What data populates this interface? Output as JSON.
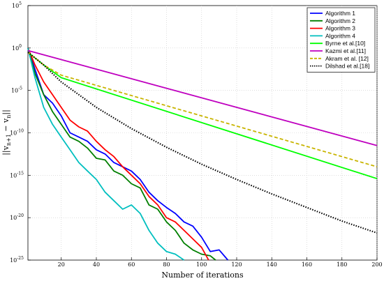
{
  "chart_data": {
    "type": "line",
    "xlabel": "Number of iterations",
    "ylabel": "||v_{n+1} - v_n||",
    "xlim": [
      1,
      200
    ],
    "ylim": [
      1e-25,
      100000.0
    ],
    "yscale": "log",
    "grid": true,
    "legend_position": "top-right",
    "x_ticks": [
      20,
      40,
      60,
      80,
      100,
      120,
      140,
      160,
      180,
      200
    ],
    "y_ticks": [
      {
        "exp": "5",
        "value": 5
      },
      {
        "exp": "0",
        "value": 0
      },
      {
        "exp": "-5",
        "value": -5
      },
      {
        "exp": "-10",
        "value": -10
      },
      {
        "exp": "-15",
        "value": -15
      },
      {
        "exp": "-20",
        "value": -20
      },
      {
        "exp": "-25",
        "value": -25
      }
    ],
    "series": [
      {
        "name": "Algorithm 1",
        "color": "#0000ff",
        "style": "solid",
        "points": [
          [
            1,
            0
          ],
          [
            5,
            -2.5
          ],
          [
            10,
            -5.5
          ],
          [
            15,
            -6.5
          ],
          [
            20,
            -8
          ],
          [
            25,
            -10
          ],
          [
            30,
            -10.5
          ],
          [
            35,
            -11
          ],
          [
            40,
            -12
          ],
          [
            45,
            -12.5
          ],
          [
            50,
            -13.5
          ],
          [
            55,
            -14
          ],
          [
            60,
            -14.5
          ],
          [
            65,
            -15.5
          ],
          [
            70,
            -17
          ],
          [
            75,
            -18
          ],
          [
            80,
            -18.8
          ],
          [
            85,
            -19.5
          ],
          [
            90,
            -20.5
          ],
          [
            95,
            -21
          ],
          [
            100,
            -22.3
          ],
          [
            105,
            -24
          ],
          [
            110,
            -23.8
          ],
          [
            115,
            -25
          ]
        ]
      },
      {
        "name": "Algorithm 2",
        "color": "#007f00",
        "style": "solid",
        "points": [
          [
            1,
            0
          ],
          [
            5,
            -3
          ],
          [
            10,
            -5.5
          ],
          [
            15,
            -7.5
          ],
          [
            20,
            -9
          ],
          [
            25,
            -10.5
          ],
          [
            30,
            -11
          ],
          [
            35,
            -11.8
          ],
          [
            40,
            -13
          ],
          [
            45,
            -13.2
          ],
          [
            50,
            -14.5
          ],
          [
            55,
            -15
          ],
          [
            60,
            -16
          ],
          [
            65,
            -16.5
          ],
          [
            70,
            -18.5
          ],
          [
            75,
            -19
          ],
          [
            80,
            -20.5
          ],
          [
            85,
            -21.5
          ],
          [
            90,
            -23
          ],
          [
            95,
            -23.8
          ],
          [
            100,
            -24.3
          ],
          [
            105,
            -24.5
          ],
          [
            108,
            -25
          ]
        ]
      },
      {
        "name": "Algorithm 3",
        "color": "#ff0000",
        "style": "solid",
        "points": [
          [
            1,
            0
          ],
          [
            5,
            -2
          ],
          [
            10,
            -4
          ],
          [
            15,
            -5.5
          ],
          [
            20,
            -7
          ],
          [
            25,
            -8.5
          ],
          [
            30,
            -9.3
          ],
          [
            35,
            -9.8
          ],
          [
            40,
            -11
          ],
          [
            45,
            -12
          ],
          [
            50,
            -12.8
          ],
          [
            55,
            -14
          ],
          [
            60,
            -15
          ],
          [
            65,
            -16
          ],
          [
            70,
            -17.5
          ],
          [
            75,
            -18.5
          ],
          [
            80,
            -20
          ],
          [
            85,
            -20.5
          ],
          [
            90,
            -21.5
          ],
          [
            95,
            -22.5
          ],
          [
            100,
            -23.5
          ],
          [
            104,
            -25
          ]
        ]
      },
      {
        "name": "Algorithm 4",
        "color": "#00bfbf",
        "style": "solid",
        "points": [
          [
            1,
            0
          ],
          [
            5,
            -3.5
          ],
          [
            10,
            -7
          ],
          [
            15,
            -9
          ],
          [
            20,
            -10.5
          ],
          [
            25,
            -12
          ],
          [
            30,
            -13.5
          ],
          [
            35,
            -14.5
          ],
          [
            40,
            -15.5
          ],
          [
            45,
            -17
          ],
          [
            50,
            -18
          ],
          [
            55,
            -19
          ],
          [
            60,
            -18.5
          ],
          [
            65,
            -19.5
          ],
          [
            70,
            -21.5
          ],
          [
            75,
            -23
          ],
          [
            80,
            -24
          ],
          [
            85,
            -24.3
          ],
          [
            90,
            -25
          ]
        ]
      },
      {
        "name": "Byrne et al.[10]",
        "color": "#00ff00",
        "style": "solid",
        "points": [
          [
            1,
            -0.5
          ],
          [
            10,
            -2
          ],
          [
            20,
            -3.5
          ],
          [
            200,
            -15.4
          ]
        ]
      },
      {
        "name": "Kazmi et al.[11]",
        "color": "#bf00bf",
        "style": "solid",
        "points": [
          [
            1,
            -0.3
          ],
          [
            200,
            -11.5
          ]
        ]
      },
      {
        "name": "Akram et al. [12]",
        "color": "#c8b400",
        "style": "dashed",
        "points": [
          [
            1,
            -0.5
          ],
          [
            10,
            -2
          ],
          [
            20,
            -3.2
          ],
          [
            200,
            -14
          ]
        ]
      },
      {
        "name": "Dilshad et al.[18]",
        "color": "#000000",
        "style": "dotted",
        "points": [
          [
            1,
            -0.5
          ],
          [
            10,
            -2
          ],
          [
            20,
            -4
          ],
          [
            40,
            -7
          ],
          [
            60,
            -9.5
          ],
          [
            80,
            -11.7
          ],
          [
            100,
            -13.7
          ],
          [
            120,
            -15.5
          ],
          [
            140,
            -17.2
          ],
          [
            160,
            -18.8
          ],
          [
            180,
            -20.4
          ],
          [
            200,
            -21.8
          ]
        ]
      }
    ]
  }
}
